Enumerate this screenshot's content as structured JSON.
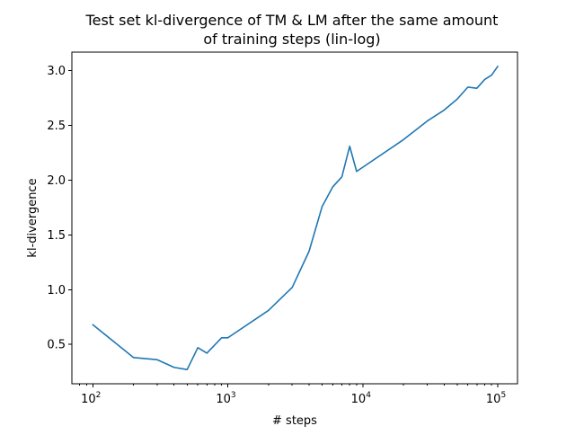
{
  "chart_data": {
    "type": "line",
    "title_line1": "Test set kl-divergence of TM & LM after the same amount",
    "title_line2": "of training steps (lin-log)",
    "xlabel": "# steps",
    "ylabel": "kl-divergence",
    "xscale": "log",
    "yscale": "linear",
    "xlim": [
      70,
      140000
    ],
    "ylim": [
      0.14,
      3.17
    ],
    "grid": false,
    "line_color": "#1f77b4",
    "xticks": [
      {
        "value": 100,
        "base": "10",
        "exp": "2"
      },
      {
        "value": 1000,
        "base": "10",
        "exp": "3"
      },
      {
        "value": 10000,
        "base": "10",
        "exp": "4"
      },
      {
        "value": 100000,
        "base": "10",
        "exp": "5"
      }
    ],
    "yticks": [
      {
        "value": 0.5,
        "label": "0.5"
      },
      {
        "value": 1.0,
        "label": "1.0"
      },
      {
        "value": 1.5,
        "label": "1.5"
      },
      {
        "value": 2.0,
        "label": "2.0"
      },
      {
        "value": 2.5,
        "label": "2.5"
      },
      {
        "value": 3.0,
        "label": "3.0"
      }
    ],
    "series": [
      {
        "x": [
          100,
          200,
          300,
          400,
          500,
          600,
          700,
          900,
          1000,
          2000,
          3000,
          4000,
          5000,
          6000,
          7000,
          8000,
          9000,
          20000,
          30000,
          40000,
          50000,
          60000,
          70000,
          80000,
          90000,
          100000
        ],
        "y": [
          0.68,
          0.38,
          0.36,
          0.29,
          0.27,
          0.47,
          0.42,
          0.56,
          0.56,
          0.81,
          1.02,
          1.35,
          1.76,
          1.94,
          2.03,
          2.31,
          2.08,
          2.37,
          2.54,
          2.64,
          2.74,
          2.85,
          2.84,
          2.92,
          2.96,
          3.04
        ]
      }
    ]
  }
}
